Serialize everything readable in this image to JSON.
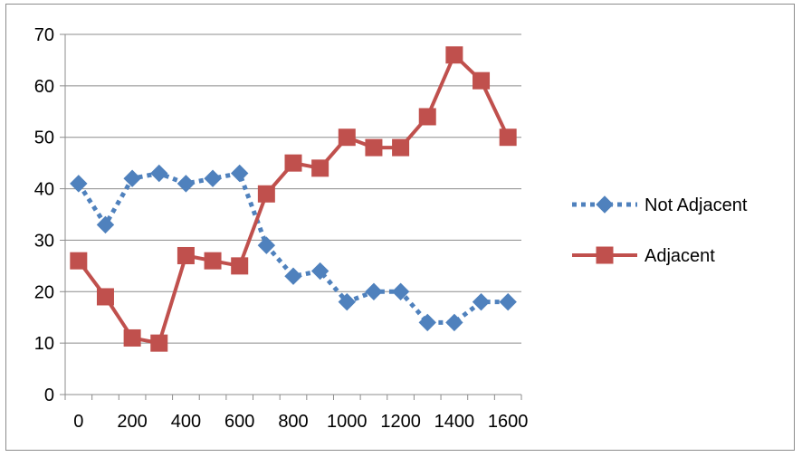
{
  "chart_data": {
    "type": "line",
    "title": "",
    "xlabel": "",
    "ylabel": "",
    "x": [
      0,
      100,
      200,
      300,
      400,
      500,
      600,
      700,
      800,
      900,
      1000,
      1100,
      1200,
      1300,
      1400,
      1500,
      1600
    ],
    "x_tick_labels": [
      "0",
      "200",
      "400",
      "600",
      "800",
      "1000",
      "1200",
      "1400",
      "1600"
    ],
    "y_tick_labels": [
      "0",
      "10",
      "20",
      "30",
      "40",
      "50",
      "60",
      "70"
    ],
    "ylim": [
      0,
      70
    ],
    "grid": "horizontal",
    "legend_position": "right",
    "series": [
      {
        "name": "Not Adjacent",
        "color": "#4f81bd",
        "line_style": "dotted",
        "marker": "diamond",
        "values": [
          41,
          33,
          42,
          43,
          41,
          42,
          43,
          29,
          23,
          24,
          18,
          20,
          20,
          14,
          14,
          18,
          18
        ]
      },
      {
        "name": "Adjacent",
        "color": "#c0504d",
        "line_style": "solid",
        "marker": "square",
        "values": [
          26,
          19,
          11,
          10,
          27,
          26,
          25,
          39,
          45,
          44,
          50,
          48,
          48,
          54,
          66,
          61,
          50
        ]
      }
    ]
  }
}
